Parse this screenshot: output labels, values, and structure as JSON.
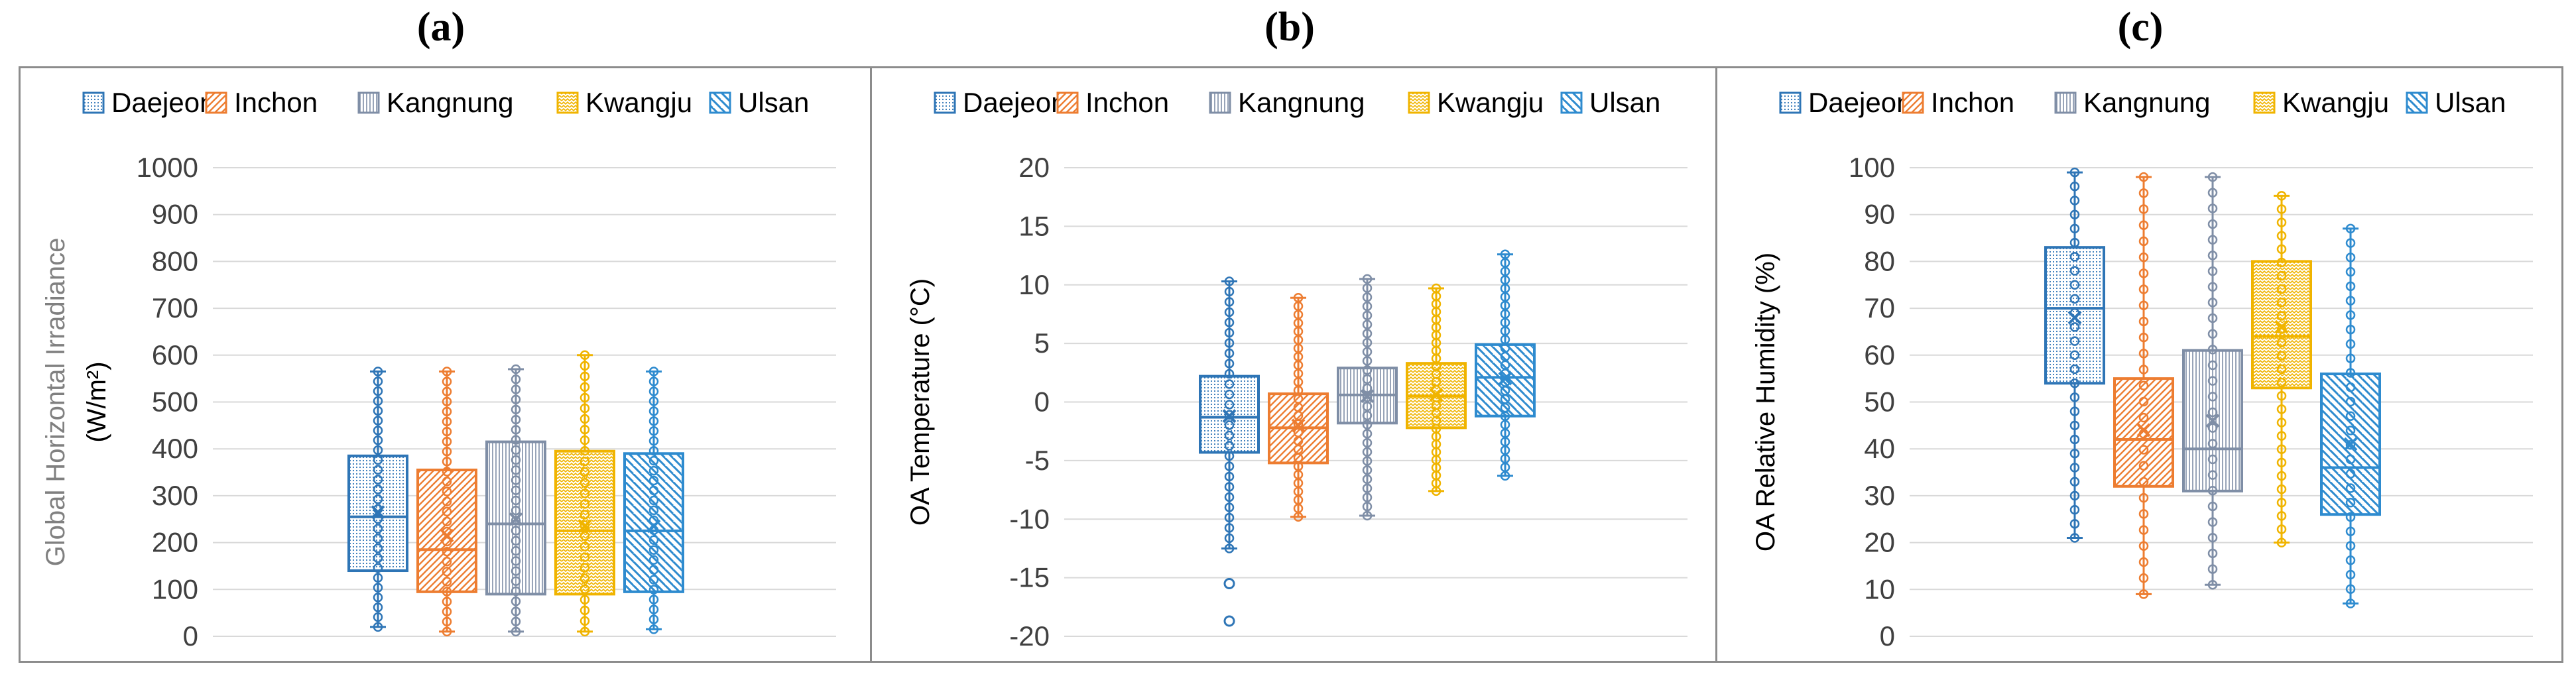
{
  "panel_labels": [
    "(a)",
    "(b)",
    "(c)"
  ],
  "colors": {
    "Daejeon": "#2e75b6",
    "Inchon": "#ed7d31",
    "Kangnung": "#7f8ea6",
    "Kwangju": "#f0b400",
    "Ulsan": "#2e8bcf"
  },
  "chart_data": [
    {
      "type": "boxplot",
      "title": "(a)",
      "ylabel": "Global Horizontal Irradiance",
      "ylabel2": "(W/m²)",
      "ylim": [
        0,
        1000
      ],
      "yticks": [
        0,
        100,
        200,
        300,
        400,
        500,
        600,
        700,
        800,
        900,
        1000
      ],
      "tick_labels": [
        "0",
        "100",
        "200",
        "300",
        "400",
        "500",
        "600",
        "700",
        "800",
        "900",
        "1000"
      ],
      "legend": [
        "Daejeon",
        "Inchon",
        "Kangnung",
        "Kwangju",
        "Ulsan"
      ],
      "legend_position": "top",
      "series": [
        {
          "name": "Daejeon",
          "min": 20,
          "q1": 140,
          "median": 255,
          "q3": 385,
          "max": 565,
          "mean": 265,
          "outliers": []
        },
        {
          "name": "Inchon",
          "min": 10,
          "q1": 95,
          "median": 185,
          "q3": 355,
          "max": 565,
          "mean": 215,
          "outliers": []
        },
        {
          "name": "Kangnung",
          "min": 10,
          "q1": 90,
          "median": 240,
          "q3": 415,
          "max": 570,
          "mean": 250,
          "outliers": []
        },
        {
          "name": "Kwangju",
          "min": 10,
          "q1": 90,
          "median": 225,
          "q3": 395,
          "max": 600,
          "mean": 235,
          "outliers": []
        },
        {
          "name": "Ulsan",
          "min": 15,
          "q1": 95,
          "median": 225,
          "q3": 390,
          "max": 565,
          "mean": 235,
          "outliers": []
        }
      ]
    },
    {
      "type": "boxplot",
      "title": "(b)",
      "ylabel": "OA Temperature (°C)",
      "ylabel2": "",
      "ylim": [
        -20,
        20
      ],
      "yticks": [
        -20,
        -15,
        -10,
        -5,
        0,
        5,
        10,
        15,
        20
      ],
      "tick_labels": [
        "-20",
        "-15",
        "-10",
        "-5",
        "0",
        "5",
        "10",
        "15",
        "20"
      ],
      "legend": [
        "Daejeon",
        "Inchon",
        "Kangnung",
        "Kwangju",
        "Ulsan"
      ],
      "legend_position": "top",
      "series": [
        {
          "name": "Daejeon",
          "min": -12.5,
          "q1": -4.3,
          "median": -1.3,
          "q3": 2.2,
          "max": 10.3,
          "mean": -1.2,
          "outliers": [
            -15.5,
            -18.7
          ]
        },
        {
          "name": "Inchon",
          "min": -9.8,
          "q1": -5.2,
          "median": -2.2,
          "q3": 0.7,
          "max": 8.9,
          "mean": -2.0,
          "outliers": []
        },
        {
          "name": "Kangnung",
          "min": -9.7,
          "q1": -1.8,
          "median": 0.6,
          "q3": 2.9,
          "max": 10.5,
          "mean": 0.5,
          "outliers": []
        },
        {
          "name": "Kwangju",
          "min": -7.6,
          "q1": -2.2,
          "median": 0.5,
          "q3": 3.3,
          "max": 9.7,
          "mean": 0.6,
          "outliers": []
        },
        {
          "name": "Ulsan",
          "min": -6.3,
          "q1": -1.2,
          "median": 2.1,
          "q3": 4.9,
          "max": 12.6,
          "mean": 2.0,
          "outliers": []
        }
      ]
    },
    {
      "type": "boxplot",
      "title": "(c)",
      "ylabel": "OA Relative Humidity (%)",
      "ylabel2": "",
      "ylim": [
        0,
        100
      ],
      "yticks": [
        0,
        10,
        20,
        30,
        40,
        50,
        60,
        70,
        80,
        90,
        100
      ],
      "tick_labels": [
        "0",
        "10",
        "20",
        "30",
        "40",
        "50",
        "60",
        "70",
        "80",
        "90",
        "100"
      ],
      "legend": [
        "Daejeon",
        "Inchon",
        "Kangnung",
        "Kwangju",
        "Ulsan"
      ],
      "legend_position": "top",
      "series": [
        {
          "name": "Daejeon",
          "min": 21,
          "q1": 54,
          "median": 70,
          "q3": 83,
          "max": 99,
          "mean": 68,
          "outliers": []
        },
        {
          "name": "Inchon",
          "min": 9,
          "q1": 32,
          "median": 42,
          "q3": 55,
          "max": 98,
          "mean": 44,
          "outliers": []
        },
        {
          "name": "Kangnung",
          "min": 11,
          "q1": 31,
          "median": 40,
          "q3": 61,
          "max": 98,
          "mean": 46,
          "outliers": []
        },
        {
          "name": "Kwangju",
          "min": 20,
          "q1": 53,
          "median": 64,
          "q3": 80,
          "max": 94,
          "mean": 66,
          "outliers": []
        },
        {
          "name": "Ulsan",
          "min": 7,
          "q1": 26,
          "median": 36,
          "q3": 56,
          "max": 87,
          "mean": 41,
          "outliers": []
        }
      ]
    }
  ]
}
